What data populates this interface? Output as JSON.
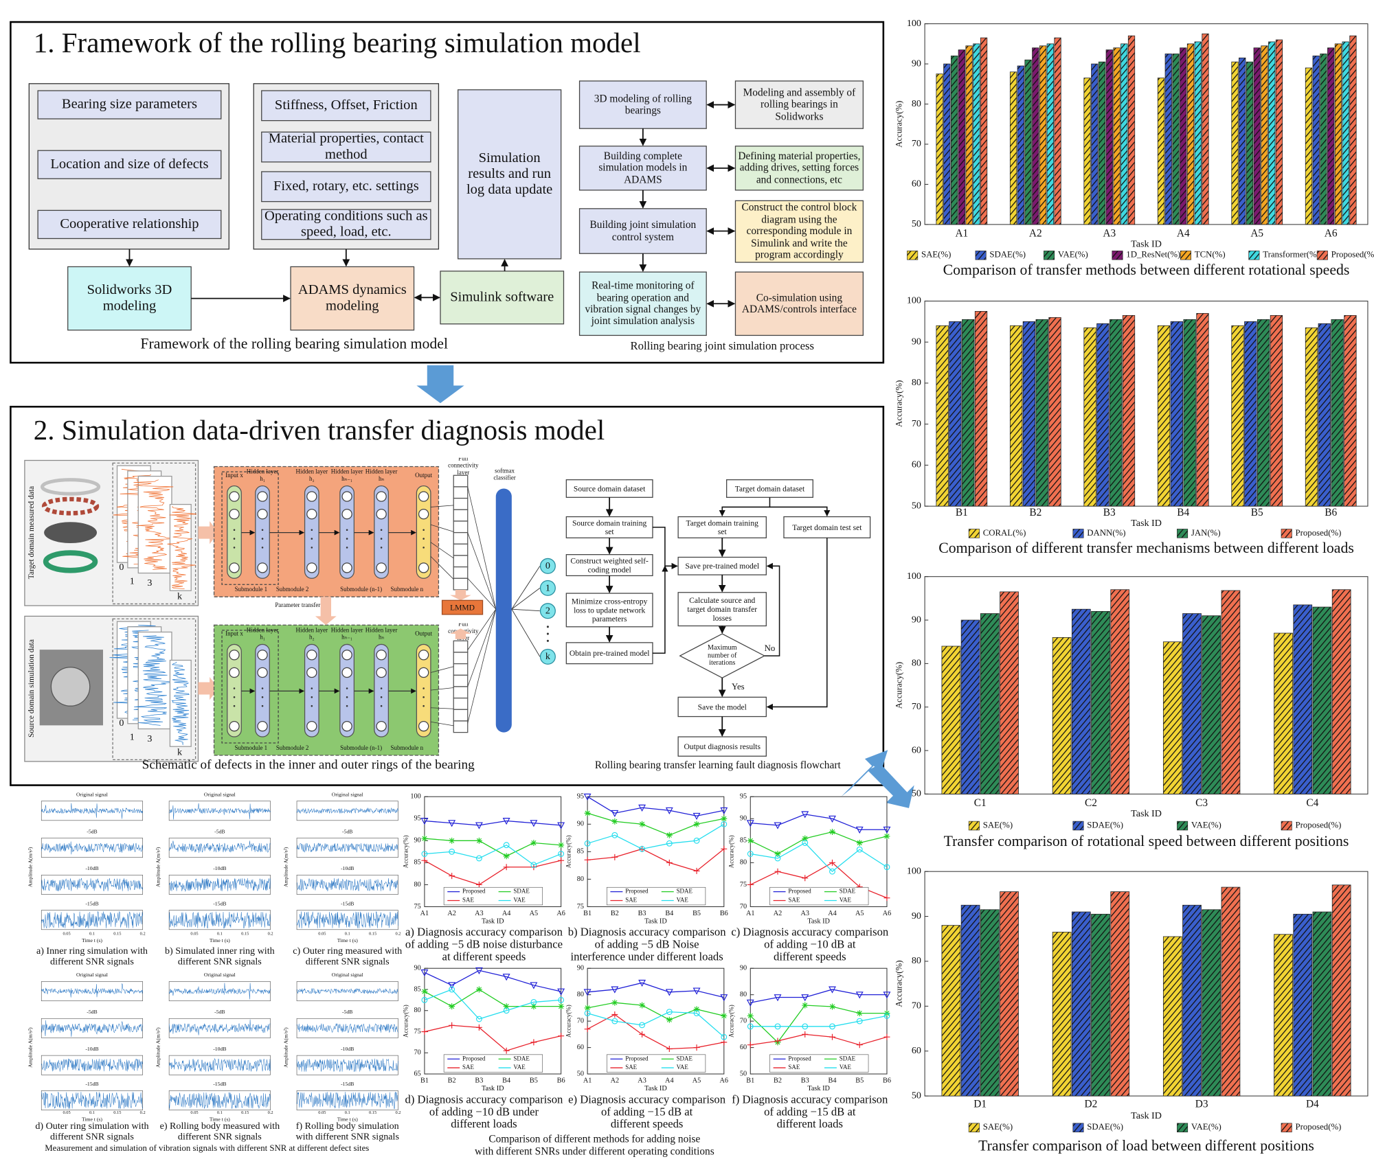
{
  "panel1": {
    "title": "1. Framework of the rolling bearing simulation model",
    "framework": {
      "inputs_a": [
        "Bearing size parameters",
        "Location and size of defects",
        "Cooperative relationship"
      ],
      "inputs_b": [
        "Stiffness, Offset, Friction",
        "Material properties, contact method",
        "Fixed, rotary, etc. settings",
        "Operating conditions such as speed, load, etc."
      ],
      "results": "Simulation results and run log data update",
      "solidworks": "Solidworks 3D modeling",
      "adams": "ADAMS dynamics modeling",
      "simulink": "Simulink software",
      "caption": "Framework of the rolling bearing simulation model"
    },
    "process": {
      "steps": [
        "3D modeling of rolling bearings",
        "Building complete simulation models in ADAMS",
        "Building joint simulation control system",
        "Real-time monitoring of bearing operation and vibration signal changes by joint simulation analysis"
      ],
      "tools": [
        "Modeling and assembly of rolling bearings in Solidworks",
        "Defining material properties, adding drives, setting forces and connections, etc",
        "Construct the control block diagram using the corresponding module in Simulink and write the program accordingly",
        "Co-simulation using ADAMS/controls interface"
      ],
      "caption": "Rolling bearing joint simulation process"
    }
  },
  "panel2": {
    "title": "2. Simulation data-driven transfer diagnosis model",
    "network": {
      "target_label": "Target domain measured data",
      "source_label": "Source domain simulation data",
      "sample_labels": [
        "0",
        "1",
        "3",
        "k"
      ],
      "layers": [
        "Input x",
        "Hidden layer h₁",
        "Hidden layer h₂",
        "Hidden layer hₙ₋₁",
        "Hidden layer hₙ",
        "Output"
      ],
      "submodules": [
        "Submodule 1",
        "Submodule 2",
        "Submodule (n-1)",
        "Submodule n"
      ],
      "parameter_transfer": "Parameter transfer",
      "fc_label": "Full connectivity layer",
      "softmax_label": "softmax classifier",
      "lmmd": "LMMD",
      "classes": [
        "0",
        "1",
        "2",
        "k"
      ],
      "caption": "Schematic of defects in the inner and outer rings of the bearing"
    },
    "flowchart": {
      "nodes": [
        "Source domain dataset",
        "Source domain training set",
        "Construct weighted self-coding model",
        "Minimize cross-entropy loss to update network parameters",
        "Obtain pre-trained model",
        "Target domain dataset",
        "Target domain training set",
        "Target domain test set",
        "Save pre-trained model",
        "Calculate source and target domain transfer losses",
        "Maximum number of iterations",
        "Save the model",
        "Output diagnosis results"
      ],
      "yes": "Yes",
      "no": "No",
      "caption": "Rolling bearing transfer learning fault diagnosis flowchart"
    }
  },
  "signals": {
    "row_labels": [
      "Original signal",
      "-5dB",
      "-10dB",
      "-15dB"
    ],
    "x_label": "Time t (s)",
    "y_label": "Amplitude A(m/s²)",
    "time_ticks": [
      "0.05",
      "0.1",
      "0.15",
      "0.2"
    ],
    "panels": [
      [
        "a) Inner ring simulation with",
        "different SNR signals"
      ],
      [
        "b) Simulated inner ring with",
        "different SNR signals"
      ],
      [
        "c) Outer ring measured with",
        "different SNR signals"
      ],
      [
        "d) Outer ring simulation with",
        "different SNR signals"
      ],
      [
        "e) Rolling body measured with",
        "different SNR signals"
      ],
      [
        "f) Rolling body simulation",
        "with different SNR signals"
      ]
    ],
    "caption": "Measurement and simulation of vibration signals with different SNR at different defect sites"
  },
  "noise_caption": [
    "Comparison of different methods for adding noise",
    "with different SNRs under different operating conditions"
  ],
  "chart_data": [
    {
      "type": "bar",
      "title": "Comparison of transfer methods between different rotational speeds",
      "xlabel": "Task ID",
      "ylabel": "Accuracy(%)",
      "hatch": true,
      "categories": [
        "A1",
        "A2",
        "A3",
        "A4",
        "A5",
        "A6"
      ],
      "ylim": [
        50,
        100
      ],
      "yticks": [
        50,
        60,
        70,
        80,
        90,
        100
      ],
      "series": [
        {
          "name": "SAE(%)",
          "color": "#f2d433",
          "values": [
            87.5,
            88,
            86.5,
            86.5,
            90.5,
            89
          ]
        },
        {
          "name": "SDAE(%)",
          "color": "#3a5fcd",
          "values": [
            90,
            89.5,
            90,
            92.5,
            91.5,
            92
          ]
        },
        {
          "name": "VAE(%)",
          "color": "#2e8b57",
          "values": [
            92,
            91,
            90.5,
            92.5,
            90.5,
            92.5
          ]
        },
        {
          "name": "1D_ResNet(%)",
          "color": "#7b1a6e",
          "values": [
            93.5,
            94,
            93.5,
            94,
            94,
            94
          ]
        },
        {
          "name": "TCN(%)",
          "color": "#f5a623",
          "values": [
            94.5,
            94.5,
            94,
            95,
            94.5,
            95
          ]
        },
        {
          "name": "Transformer(%)",
          "color": "#3fd8e0",
          "values": [
            95,
            95,
            95,
            95.5,
            95.5,
            95.5
          ]
        },
        {
          "name": "Proposed(%)",
          "color": "#f07050",
          "values": [
            96.5,
            96.5,
            97,
            97.5,
            96,
            97
          ]
        }
      ]
    },
    {
      "type": "bar",
      "title": "Comparison of different transfer mechanisms between different loads",
      "xlabel": "Task ID",
      "ylabel": "Accuracy(%)",
      "hatch": true,
      "categories": [
        "B1",
        "B2",
        "B3",
        "B4",
        "B5",
        "B6"
      ],
      "ylim": [
        50,
        100
      ],
      "yticks": [
        50,
        60,
        70,
        80,
        90,
        100
      ],
      "series": [
        {
          "name": "CORAL(%)",
          "color": "#f2d433",
          "values": [
            94,
            94,
            93.5,
            94,
            94,
            93.5
          ]
        },
        {
          "name": "DANN(%)",
          "color": "#3a5fcd",
          "values": [
            95,
            95,
            94.5,
            95,
            95,
            94.5
          ]
        },
        {
          "name": "JAN(%)",
          "color": "#2e8b57",
          "values": [
            95.5,
            95.5,
            95.5,
            95.5,
            95.5,
            95.5
          ]
        },
        {
          "name": "Proposed(%)",
          "color": "#f07050",
          "values": [
            97.5,
            96,
            96.5,
            97,
            96.5,
            96.5
          ]
        }
      ]
    },
    {
      "type": "bar",
      "title": "Transfer comparison of rotational speed between different positions",
      "xlabel": "Task ID",
      "ylabel": "Accuracy(%)",
      "hatch": true,
      "categories": [
        "C1",
        "C2",
        "C3",
        "C4"
      ],
      "ylim": [
        50,
        100
      ],
      "yticks": [
        50,
        60,
        70,
        80,
        90,
        100
      ],
      "series": [
        {
          "name": "SAE(%)",
          "color": "#f2d433",
          "values": [
            84,
            86,
            85,
            87
          ]
        },
        {
          "name": "SDAE(%)",
          "color": "#3a5fcd",
          "values": [
            90,
            92.5,
            91.5,
            93.5
          ]
        },
        {
          "name": "VAE(%)",
          "color": "#2e8b57",
          "values": [
            91.5,
            92,
            91,
            93
          ]
        },
        {
          "name": "Proposed(%)",
          "color": "#f07050",
          "values": [
            96.5,
            97,
            96.8,
            97
          ]
        }
      ]
    },
    {
      "type": "bar",
      "title": "Transfer comparison of load between different positions",
      "xlabel": "Task ID",
      "ylabel": "Accuracy(%)",
      "hatch": true,
      "categories": [
        "D1",
        "D2",
        "D3",
        "D4"
      ],
      "ylim": [
        50,
        100
      ],
      "yticks": [
        50,
        60,
        70,
        80,
        90,
        100
      ],
      "series": [
        {
          "name": "SAE(%)",
          "color": "#f2d433",
          "values": [
            88,
            86.5,
            85.5,
            86
          ]
        },
        {
          "name": "SDAE(%)",
          "color": "#3a5fcd",
          "values": [
            92.5,
            91,
            92.5,
            90.5
          ]
        },
        {
          "name": "VAE(%)",
          "color": "#2e8b57",
          "values": [
            91.5,
            90.5,
            91.5,
            91
          ]
        },
        {
          "name": "Proposed(%)",
          "color": "#f07050",
          "values": [
            95.5,
            95.5,
            96.5,
            97
          ]
        }
      ]
    },
    {
      "type": "line",
      "caption": [
        "a) Diagnosis accuracy comparison",
        "of adding −5 dB noise disturbance",
        "at different speeds"
      ],
      "xlabel": "Task ID",
      "ylabel": "Accuracy(%)",
      "categories": [
        "A1",
        "A2",
        "A3",
        "A4",
        "A5",
        "A6"
      ],
      "ylim": [
        75,
        100
      ],
      "yticks": [
        75,
        80,
        85,
        90,
        95,
        100
      ],
      "series": [
        {
          "name": "Proposed",
          "color": "#1f1fd6",
          "marker": "v",
          "values": [
            94.5,
            94,
            93.5,
            94.5,
            94,
            93.5
          ]
        },
        {
          "name": "SDAE",
          "color": "#22cc22",
          "marker": "*",
          "values": [
            90.5,
            90,
            90,
            86.5,
            89.5,
            89
          ]
        },
        {
          "name": "SAE",
          "color": "#e8202a",
          "marker": "+",
          "values": [
            85.5,
            82,
            80,
            84,
            84,
            85.5
          ]
        },
        {
          "name": "VAE",
          "color": "#22ddee",
          "marker": "o",
          "values": [
            87,
            87.5,
            86,
            89,
            84.5,
            87
          ]
        }
      ]
    },
    {
      "type": "line",
      "caption": [
        "b) Diagnosis accuracy comparison",
        "of adding −5 dB Noise",
        "interference under different loads"
      ],
      "xlabel": "Task ID",
      "ylabel": "Accuracy(%)",
      "categories": [
        "B1",
        "B2",
        "B3",
        "B4",
        "B5",
        "B6"
      ],
      "ylim": [
        75,
        95
      ],
      "yticks": [
        75,
        80,
        85,
        90,
        95
      ],
      "series": [
        {
          "name": "Proposed",
          "color": "#1f1fd6",
          "marker": "v",
          "values": [
            95,
            92,
            93,
            92.5,
            91.5,
            92.5
          ]
        },
        {
          "name": "SDAE",
          "color": "#22cc22",
          "marker": "*",
          "values": [
            92,
            90.5,
            90,
            88,
            90,
            91
          ]
        },
        {
          "name": "SAE",
          "color": "#e8202a",
          "marker": "+",
          "values": [
            83.5,
            84,
            85.5,
            83,
            81.5,
            85.5
          ]
        },
        {
          "name": "VAE",
          "color": "#22ddee",
          "marker": "o",
          "values": [
            86.5,
            88,
            85.5,
            86.5,
            87,
            90
          ]
        }
      ]
    },
    {
      "type": "line",
      "caption": [
        "c) Diagnosis accuracy comparison",
        "of adding −10 dB at",
        "different speeds"
      ],
      "xlabel": "Task ID",
      "ylabel": "Accuracy(%)",
      "categories": [
        "A1",
        "A2",
        "A3",
        "A4",
        "A5",
        "A6"
      ],
      "ylim": [
        70,
        95
      ],
      "yticks": [
        70,
        75,
        80,
        85,
        90,
        95
      ],
      "series": [
        {
          "name": "Proposed",
          "color": "#1f1fd6",
          "marker": "v",
          "values": [
            89,
            88.5,
            91,
            90,
            87.5,
            87.5
          ]
        },
        {
          "name": "SDAE",
          "color": "#22cc22",
          "marker": "*",
          "values": [
            85,
            82,
            85.5,
            87,
            84.5,
            86
          ]
        },
        {
          "name": "SAE",
          "color": "#e8202a",
          "marker": "+",
          "values": [
            75,
            78,
            76.5,
            80,
            74.5,
            72
          ]
        },
        {
          "name": "VAE",
          "color": "#22ddee",
          "marker": "o",
          "values": [
            82,
            81,
            84.5,
            78,
            83,
            79
          ]
        }
      ]
    },
    {
      "type": "line",
      "caption": [
        "d) Diagnosis accuracy comparison",
        "of adding −10 dB under",
        "different loads"
      ],
      "xlabel": "Task ID",
      "ylabel": "Accuracy(%)",
      "categories": [
        "B1",
        "B2",
        "B3",
        "B4",
        "B5",
        "B6"
      ],
      "ylim": [
        65,
        90
      ],
      "yticks": [
        65,
        70,
        75,
        80,
        85,
        90
      ],
      "series": [
        {
          "name": "Proposed",
          "color": "#1f1fd6",
          "marker": "v",
          "values": [
            89,
            86,
            89.5,
            88,
            86,
            84.5
          ]
        },
        {
          "name": "SDAE",
          "color": "#22cc22",
          "marker": "*",
          "values": [
            84.5,
            81,
            85,
            81,
            81,
            81
          ]
        },
        {
          "name": "SAE",
          "color": "#e8202a",
          "marker": "+",
          "values": [
            75,
            76.5,
            76,
            70.5,
            72.5,
            74
          ]
        },
        {
          "name": "VAE",
          "color": "#22ddee",
          "marker": "o",
          "values": [
            82.5,
            85,
            78,
            80,
            82,
            82.5
          ]
        }
      ]
    },
    {
      "type": "line",
      "caption": [
        "e) Diagnosis accuracy comparison",
        "of adding −15 dB at",
        "different speeds"
      ],
      "xlabel": "Task ID",
      "ylabel": "Accuracy(%)",
      "categories": [
        "A1",
        "A2",
        "A3",
        "A4",
        "A5",
        "A6"
      ],
      "ylim": [
        50,
        90
      ],
      "yticks": [
        50,
        60,
        70,
        80,
        90
      ],
      "series": [
        {
          "name": "Proposed",
          "color": "#1f1fd6",
          "marker": "v",
          "values": [
            81,
            82,
            84.5,
            81,
            81.5,
            79
          ]
        },
        {
          "name": "SDAE",
          "color": "#22cc22",
          "marker": "*",
          "values": [
            75,
            77,
            76,
            70.5,
            74.5,
            72
          ]
        },
        {
          "name": "SAE",
          "color": "#e8202a",
          "marker": "+",
          "values": [
            67,
            72.5,
            65,
            59.5,
            60,
            62
          ]
        },
        {
          "name": "VAE",
          "color": "#22ddee",
          "marker": "o",
          "values": [
            73,
            70,
            68.5,
            73.5,
            73,
            64
          ]
        }
      ]
    },
    {
      "type": "line",
      "caption": [
        "f) Diagnosis accuracy comparison",
        "of adding −15 dB at",
        "different loads"
      ],
      "xlabel": "Task ID",
      "ylabel": "Accuracy(%)",
      "categories": [
        "B1",
        "B2",
        "B3",
        "B4",
        "B5",
        "B6"
      ],
      "ylim": [
        50,
        90
      ],
      "yticks": [
        50,
        60,
        70,
        80,
        90
      ],
      "series": [
        {
          "name": "Proposed",
          "color": "#1f1fd6",
          "marker": "v",
          "values": [
            77,
            79,
            79,
            82,
            80,
            80
          ]
        },
        {
          "name": "SDAE",
          "color": "#22cc22",
          "marker": "*",
          "values": [
            72,
            62,
            76,
            75.5,
            73,
            73
          ]
        },
        {
          "name": "SAE",
          "color": "#e8202a",
          "marker": "+",
          "values": [
            61,
            62.5,
            65,
            64,
            61,
            64
          ]
        },
        {
          "name": "VAE",
          "color": "#22ddee",
          "marker": "o",
          "values": [
            68,
            68,
            68,
            68,
            70,
            72
          ]
        }
      ]
    }
  ]
}
